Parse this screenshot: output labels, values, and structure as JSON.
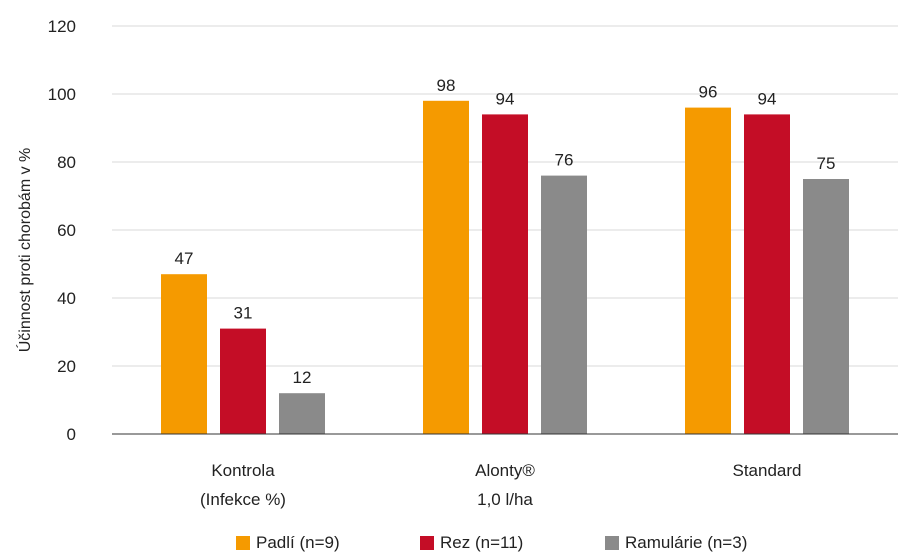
{
  "chart_data": {
    "type": "bar",
    "categories": [
      [
        "Kontrola",
        "(Infekce %)"
      ],
      [
        "Alonty®",
        "1,0 l/ha"
      ],
      [
        "Standard"
      ]
    ],
    "series": [
      {
        "name": "Padlí (n=9)",
        "color": "#F59A00",
        "values": [
          47,
          98,
          96
        ]
      },
      {
        "name": "Rez (n=11)",
        "color": "#C40D26",
        "values": [
          31,
          94,
          94
        ]
      },
      {
        "name": "Ramulárie (n=3)",
        "color": "#8A8A8A",
        "values": [
          12,
          76,
          75
        ]
      }
    ],
    "data_labels": [
      [
        "47",
        "98",
        "96"
      ],
      [
        "31",
        "94",
        "94"
      ],
      [
        "12",
        "76",
        "75"
      ]
    ],
    "ylabel": "Účinnost proti chorobám v %",
    "ylim": [
      0,
      120
    ],
    "yticks": [
      0,
      20,
      40,
      60,
      80,
      100,
      120
    ],
    "grid": true,
    "legend_position": "bottom"
  }
}
